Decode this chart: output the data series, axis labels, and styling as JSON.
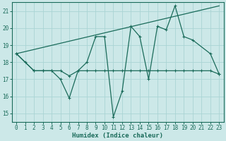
{
  "bg_color": "#cce8e8",
  "grid_color": "#aad4d4",
  "line_color": "#1a6b5a",
  "xlabel": "Humidex (Indice chaleur)",
  "xlim": [
    -0.5,
    23.5
  ],
  "ylim": [
    14.5,
    21.5
  ],
  "xticks": [
    0,
    1,
    2,
    3,
    4,
    5,
    6,
    7,
    8,
    9,
    10,
    11,
    12,
    13,
    14,
    15,
    16,
    17,
    18,
    19,
    20,
    21,
    22,
    23
  ],
  "yticks": [
    15,
    16,
    17,
    18,
    19,
    20,
    21
  ],
  "series1_x": [
    0,
    1,
    2,
    3,
    4,
    5,
    6,
    7,
    8,
    9,
    10,
    11,
    12,
    13,
    14,
    15,
    16,
    17,
    18,
    19,
    20,
    22,
    23
  ],
  "series1_y": [
    18.5,
    18.0,
    17.5,
    17.5,
    17.5,
    17.0,
    15.9,
    17.5,
    18.0,
    19.5,
    19.5,
    14.8,
    16.3,
    20.1,
    19.5,
    17.0,
    20.1,
    19.9,
    21.3,
    19.5,
    19.3,
    18.5,
    17.3
  ],
  "series2_x": [
    0,
    2,
    3,
    4,
    5,
    6,
    7,
    8,
    9,
    10,
    11,
    12,
    13,
    14,
    15,
    16,
    17,
    18,
    19,
    20,
    21,
    22,
    23
  ],
  "series2_y": [
    18.5,
    17.5,
    17.5,
    17.5,
    17.5,
    17.2,
    17.5,
    17.5,
    17.5,
    17.5,
    17.5,
    17.5,
    17.5,
    17.5,
    17.5,
    17.5,
    17.5,
    17.5,
    17.5,
    17.5,
    17.5,
    17.5,
    17.3
  ],
  "series3_x": [
    0,
    23
  ],
  "series3_y": [
    18.5,
    21.3
  ]
}
